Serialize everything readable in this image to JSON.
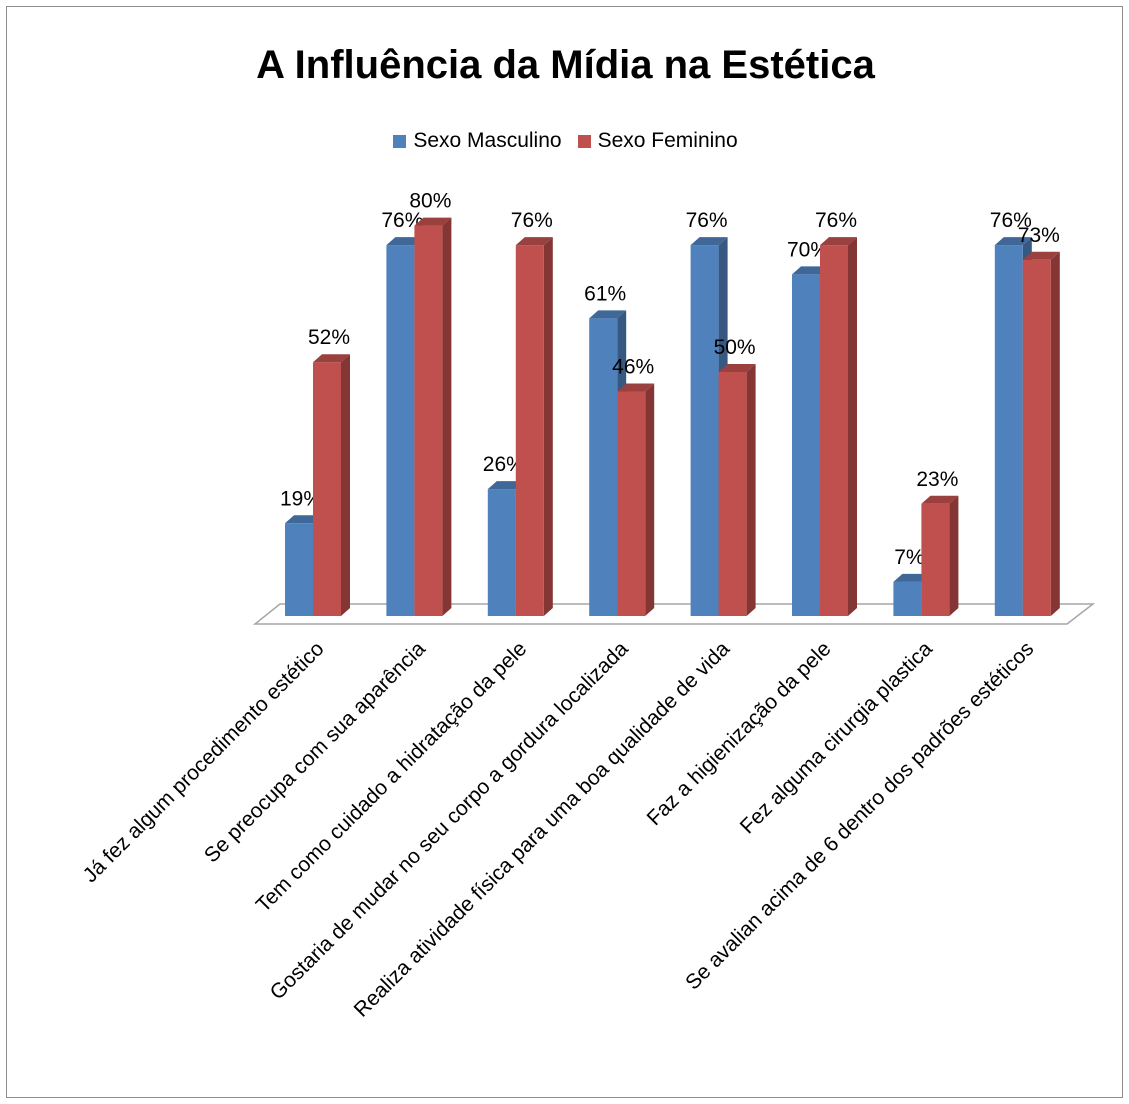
{
  "chart_data": {
    "type": "bar",
    "title": "A Influência da Mídia na Estética",
    "categories": [
      "Já fez algum procedimento estético",
      "Se preocupa com sua aparência",
      "Tem como cuidado a hidratação da  pele",
      "Gostaria de mudar no seu corpo a gordura localizada",
      "Realiza atividade física para uma boa qualidade de vida",
      "Faz a higienização da pele",
      "Fez alguma cirurgia plastica",
      "Se avalian acima de 6 dentro dos padrões estéticos"
    ],
    "series": [
      {
        "name": "Sexo Masculino",
        "values": [
          19,
          76,
          26,
          61,
          76,
          70,
          7,
          76
        ],
        "labels": [
          "19%",
          "76%",
          "26%",
          "61%",
          "76%",
          "70%",
          "7%",
          "76%"
        ],
        "color": "#4f81bd"
      },
      {
        "name": "Sexo Feminino",
        "values": [
          52,
          80,
          76,
          46,
          50,
          76,
          23,
          73
        ],
        "labels": [
          "52%",
          "80%",
          "76%",
          "46%",
          "50%",
          "76%",
          "23%",
          "73%"
        ],
        "color": "#c0504d"
      }
    ],
    "ylim": [
      0,
      80
    ],
    "grid": false,
    "legend": "top",
    "style": "3d-column"
  }
}
